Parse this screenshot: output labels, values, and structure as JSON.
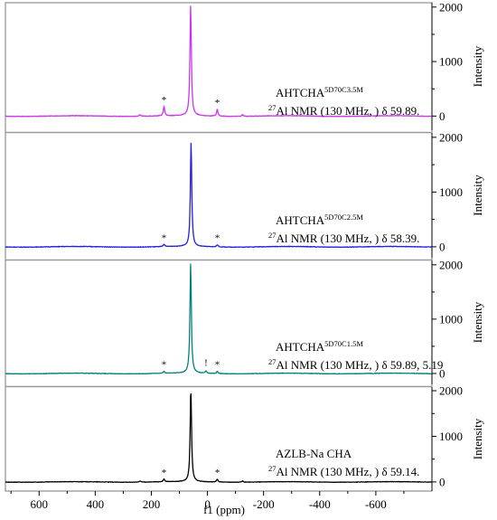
{
  "figure": {
    "xlabel": "f1 (ppm)",
    "ylabel": "Intensity",
    "x_ticks": [
      "600",
      "400",
      "200",
      "0",
      "-200",
      "-400",
      "-600"
    ],
    "y_ticks": [
      "0",
      "1000",
      "2000"
    ],
    "annotation_prefix": "Al NMR (130 MHz, ) δ",
    "annotation_superscript": "27"
  },
  "chart_data": [
    {
      "type": "line",
      "sample": "AHTCHA",
      "sample_superscript": "5D70C3.5M",
      "shifts": "59.89.",
      "color": "#cc33ee",
      "xlim": [
        720,
        -800
      ],
      "ylim": [
        -260,
        2080
      ],
      "peaks": [
        {
          "x": 59.89,
          "height": 2020,
          "width": 3
        },
        {
          "x": 155,
          "height": 170,
          "width": 3
        },
        {
          "x": -35,
          "height": 120,
          "width": 3
        },
        {
          "x": 240,
          "height": 30,
          "width": 3
        },
        {
          "x": -125,
          "height": 30,
          "width": 3
        }
      ],
      "star_markers": [
        155,
        -35
      ],
      "other_markers": []
    },
    {
      "type": "line",
      "sample": "AHTCHA",
      "sample_superscript": "5D70C2.5M",
      "shifts": "58.39.",
      "color": "#2020dd",
      "xlim": [
        720,
        -800
      ],
      "ylim": [
        -200,
        2080
      ],
      "peaks": [
        {
          "x": 58.39,
          "height": 1900,
          "width": 3
        },
        {
          "x": 155,
          "height": 40,
          "width": 3
        },
        {
          "x": -35,
          "height": 40,
          "width": 3
        }
      ],
      "star_markers": [
        155,
        -35
      ],
      "other_markers": []
    },
    {
      "type": "line",
      "sample": "AHTCHA",
      "sample_superscript": "5D70C1.5M",
      "shifts": "59.89, 5.19",
      "color": "#008080",
      "xlim": [
        720,
        -800
      ],
      "ylim": [
        -200,
        2080
      ],
      "peaks": [
        {
          "x": 59.89,
          "height": 2020,
          "width": 3
        },
        {
          "x": 155,
          "height": 40,
          "width": 3
        },
        {
          "x": 5.19,
          "height": 45,
          "width": 3
        },
        {
          "x": -35,
          "height": 40,
          "width": 3
        }
      ],
      "star_markers": [
        155,
        -35
      ],
      "other_markers": [
        {
          "x": 5.19,
          "label": "!"
        }
      ]
    },
    {
      "type": "line",
      "sample": "AZLB-Na CHA",
      "sample_superscript": "",
      "shifts": "59.14.",
      "color": "#000000",
      "xlim": [
        720,
        -800
      ],
      "ylim": [
        -200,
        2080
      ],
      "peaks": [
        {
          "x": 59.14,
          "height": 2020,
          "width": 3
        },
        {
          "x": 155,
          "height": 60,
          "width": 3
        },
        {
          "x": -35,
          "height": 60,
          "width": 3
        },
        {
          "x": 240,
          "height": 25,
          "width": 3
        },
        {
          "x": -125,
          "height": 25,
          "width": 3
        }
      ],
      "star_markers": [
        155,
        -35
      ],
      "other_markers": []
    }
  ]
}
